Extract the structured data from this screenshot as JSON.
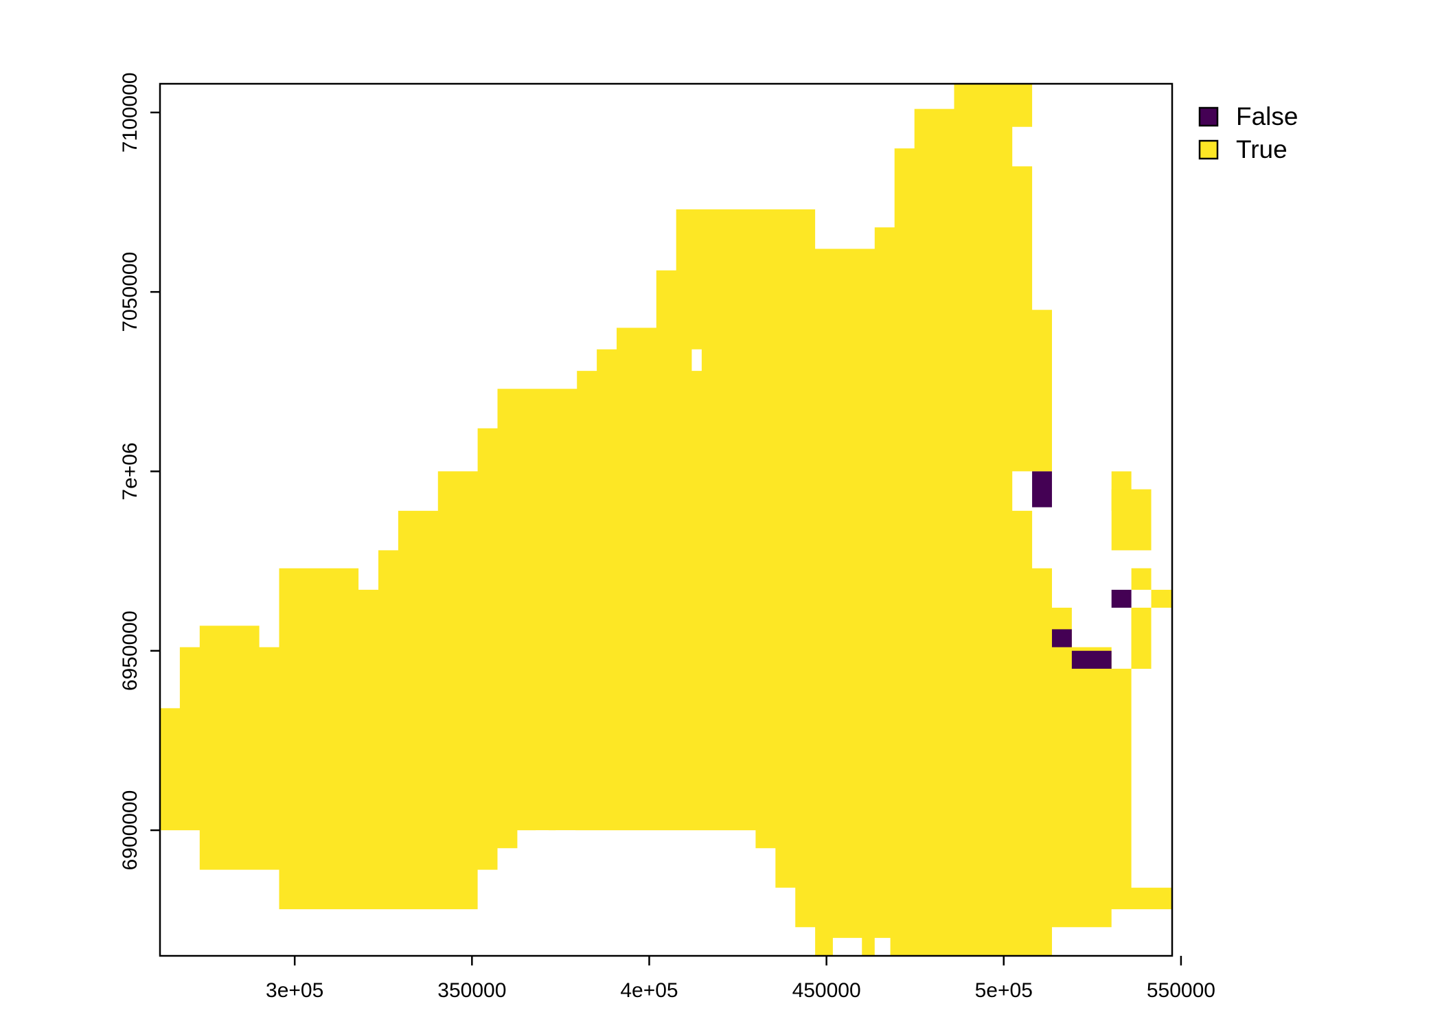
{
  "chart_data": {
    "type": "heatmap",
    "title": "",
    "xlabel": "",
    "ylabel": "",
    "xlim": [
      262000,
      547500
    ],
    "ylim": [
      6865000,
      7108000
    ],
    "x_ticks": [
      {
        "value": 300000,
        "label": "3e+05"
      },
      {
        "value": 350000,
        "label": "350000"
      },
      {
        "value": 400000,
        "label": "4e+05"
      },
      {
        "value": 450000,
        "label": "450000"
      },
      {
        "value": 500000,
        "label": "5e+05"
      },
      {
        "value": 550000,
        "label": "550000"
      }
    ],
    "y_ticks": [
      {
        "value": 6900000,
        "label": "6900000"
      },
      {
        "value": 6950000,
        "label": "6950000"
      },
      {
        "value": 7000000,
        "label": "7e+06"
      },
      {
        "value": 7050000,
        "label": "7050000"
      },
      {
        "value": 7100000,
        "label": "7100000"
      }
    ],
    "legend": {
      "placement": "top-right",
      "entries": [
        {
          "label": "False",
          "color": "#440154"
        },
        {
          "label": "True",
          "color": "#FDE725"
        }
      ]
    },
    "cell_size": [
      5600,
      5600
    ],
    "true_cells": [
      [
        262000,
        6900000,
        267600,
        6934000
      ],
      [
        267600,
        6900000,
        273200,
        6950000
      ],
      [
        273200,
        6889000,
        290000,
        6957000
      ],
      [
        290000,
        6889000,
        295600,
        6951000
      ],
      [
        295600,
        6878000,
        318000,
        6973000
      ],
      [
        318000,
        6878000,
        323600,
        6967000
      ],
      [
        323600,
        6878000,
        329200,
        6978000
      ],
      [
        329200,
        6878000,
        340400,
        6989000
      ],
      [
        340400,
        6878000,
        340400,
        6878000
      ],
      [
        340400,
        6878000,
        340400,
        6878000
      ],
      [
        340400,
        6878000,
        340400,
        6878000
      ],
      [
        340400,
        6878000,
        340400,
        6878000
      ],
      [
        340400,
        6878000,
        340400,
        6878000
      ],
      [
        340400,
        6878000,
        340400,
        6878000
      ],
      [
        340400,
        6878000,
        340400,
        6878000
      ],
      [
        340400,
        6878000,
        340400,
        6878000
      ],
      [
        340400,
        6878000,
        340400,
        6878000
      ],
      [
        340400,
        6878000,
        340400,
        6878000
      ]
    ],
    "false_cells": [
      [
        508000,
        6990000,
        513600,
        7000000
      ],
      [
        513600,
        6951000,
        519200,
        6956000
      ],
      [
        519200,
        6945000,
        530400,
        6950000
      ],
      [
        530400,
        6962000,
        536000,
        6967000
      ]
    ]
  }
}
